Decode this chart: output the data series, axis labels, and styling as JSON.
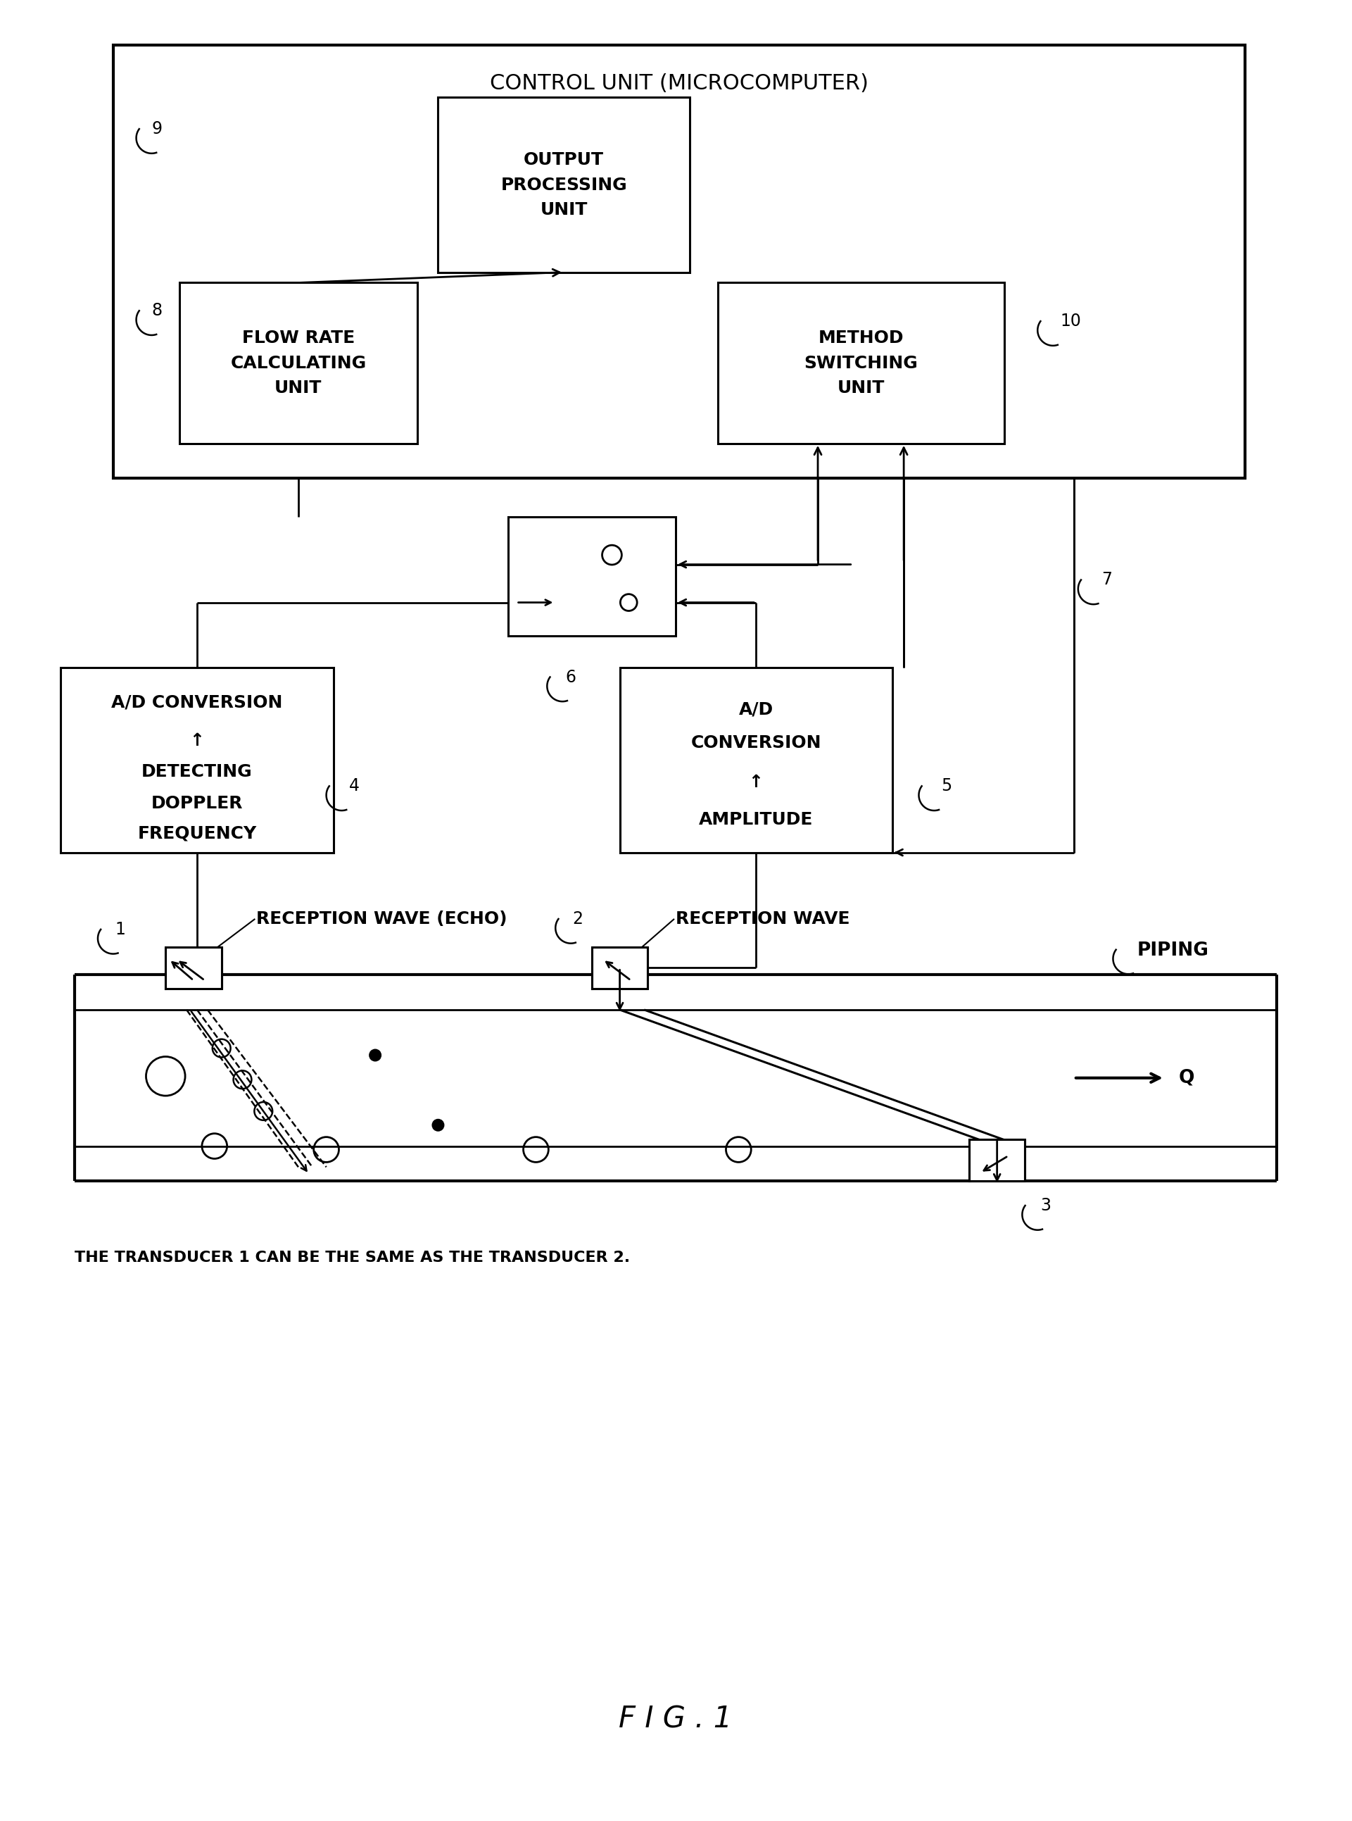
{
  "bg_color": "#ffffff",
  "fig_width": 19.21,
  "fig_height": 25.86,
  "title_label": "F I G . 1",
  "control_unit_label": "CONTROL UNIT (MICROCOMPUTER)",
  "box_output": "OUTPUT\nPROCESSING\nUNIT",
  "box_flowrate": "FLOW RATE\nCALCULATING\nUNIT",
  "box_method": "METHOD\nSWITCHING\nUNIT",
  "box_adc1_line1": "A/D CONVERSION",
  "box_adc1_line2": "↑",
  "box_adc1_line3": "DETECTING",
  "box_adc1_line4": "DOPPLER",
  "box_adc1_line5": "FREQUENCY",
  "box_adc2_line1": "A/D",
  "box_adc2_line2": "CONVERSION",
  "box_adc2_line3": "↑",
  "box_adc2_line4": "AMPLITUDE",
  "label_reception_echo": "RECEPTION WAVE (ECHO)",
  "label_reception_wave": "RECEPTION WAVE",
  "label_piping": "PIPING",
  "label_Q": "Q",
  "label_transducer": "THE TRANSDUCER 1 CAN BE THE SAME AS THE TRANSDUCER 2.",
  "label_1": "1",
  "label_2": "2",
  "label_3": "3",
  "label_4": "4",
  "label_5": "5",
  "label_6": "6",
  "label_7": "7",
  "label_8": "8",
  "label_9": "9",
  "label_10": "10"
}
